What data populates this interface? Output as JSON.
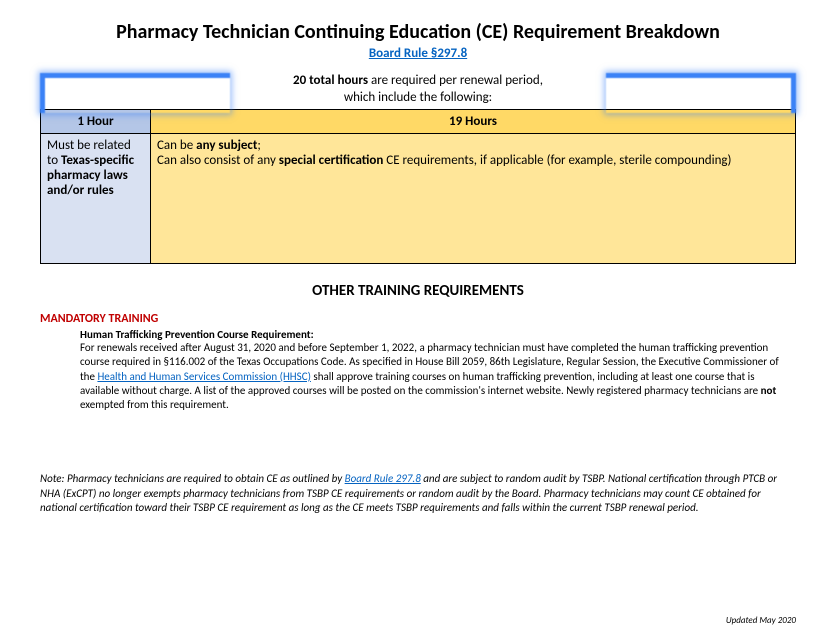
{
  "title": "Pharmacy Technician Continuing Education (CE) Requirement Breakdown",
  "subtitle_link": "Board Rule §297.8",
  "intro": {
    "bold_part": "20 total hours",
    "rest1": " are required per renewal period,",
    "line2": "which include the following:"
  },
  "table": {
    "col1_header": "1 Hour",
    "col2_header": "19 Hours",
    "col1_body_pre": "Must be related to ",
    "col1_body_bold": "Texas-specific pharmacy laws and/or rules",
    "col2_body_pre": "Can be ",
    "col2_body_bold1": "any subject",
    "col2_body_semi": ";",
    "col2_body_mid": "Can also consist of any ",
    "col2_body_bold2": "special certification",
    "col2_body_post": " CE requirements, if applicable (for example, sterile compounding)"
  },
  "other_heading": "OTHER TRAINING REQUIREMENTS",
  "mandatory_label": "MANDATORY TRAINING",
  "traffic": {
    "heading": "Human Trafficking Prevention Course Requirement:",
    "body_pre": "For renewals received after August 31, 2020 and before September 1, 2022, a pharmacy technician must have completed the human trafficking prevention course required in §116.002 of the Texas Occupations Code. As specified in House Bill 2059, 86th Legislature, Regular Session, the Executive Commissioner of the ",
    "link": "Health and Human Services Commission (HHSC)",
    "body_post": " shall approve training courses on human trafficking prevention, including at least one course that is available without charge. A list of the approved courses will be posted on the commission's internet website. Newly registered pharmacy technicians are ",
    "bold_not": "not",
    "body_end": " exempted from this requirement."
  },
  "note": {
    "pre": "Note: Pharmacy technicians are required to obtain CE as outlined by ",
    "link": "Board Rule 297.8",
    "post": " and are subject to random audit by TSBP. National certification through PTCB or NHA (ExCPT) no longer exempts pharmacy technicians from TSBP CE requirements or random audit by the Board. Pharmacy technicians may count CE obtained for national certification toward their TSBP CE requirement as long as the CE meets TSBP requirements and falls within the current TSBP renewal period."
  },
  "updated": "Updated May 2020",
  "colors": {
    "header_blue": "#b4c6e7",
    "header_yellow": "#ffd966",
    "cell_blue": "#d9e1f2",
    "cell_yellow": "#ffe699",
    "link": "#0563c1",
    "red": "#c00000",
    "bracket": "#3b82f6"
  }
}
